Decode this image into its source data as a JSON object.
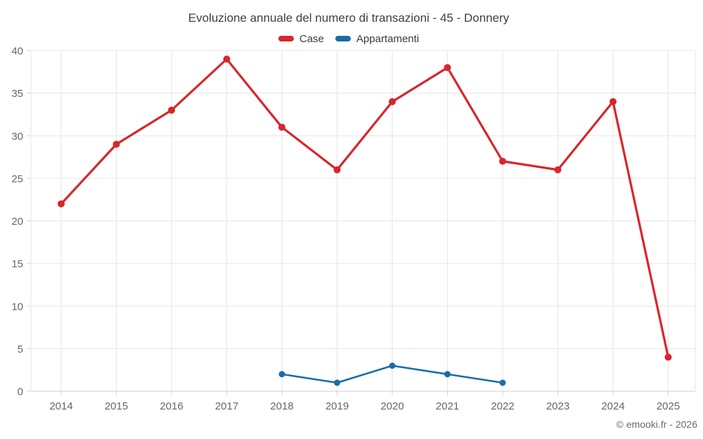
{
  "title": "Evoluzione annuale del numero di transazioni - 45 - Donnery",
  "attribution": "© emooki.fr - 2026",
  "legend": {
    "items": [
      {
        "label": "Case",
        "color": "#d8262c"
      },
      {
        "label": "Appartamenti",
        "color": "#1a6ca8"
      }
    ]
  },
  "colors": {
    "background": "#ffffff",
    "grid": "#e6e6e6",
    "axis": "#cfcfcf",
    "tick": "#d4d4d4",
    "title_text": "#3f3f3f",
    "label_text": "#666666",
    "case_red": "#d8262c",
    "appartamenti_blue": "#1a6ca8"
  },
  "chart_data": {
    "type": "line",
    "title": "Evoluzione annuale del numero di transazioni - 45 - Donnery",
    "categories": [
      "2014",
      "2015",
      "2016",
      "2017",
      "2018",
      "2019",
      "2020",
      "2021",
      "2022",
      "2023",
      "2024",
      "2025"
    ],
    "series": [
      {
        "name": "Case",
        "color": "#d8262c",
        "values": [
          22,
          29,
          33,
          39,
          31,
          26,
          34,
          38,
          27,
          26,
          34,
          4
        ]
      },
      {
        "name": "Appartamenti",
        "color": "#1a6ca8",
        "values": [
          null,
          null,
          null,
          null,
          2,
          1,
          3,
          2,
          1,
          null,
          null,
          null
        ]
      }
    ],
    "xlabel": "",
    "ylabel": "",
    "ylim": [
      0,
      40
    ],
    "yticks": [
      0,
      5,
      10,
      15,
      20,
      25,
      30,
      35,
      40
    ],
    "grid": true,
    "legend_position": "top"
  }
}
